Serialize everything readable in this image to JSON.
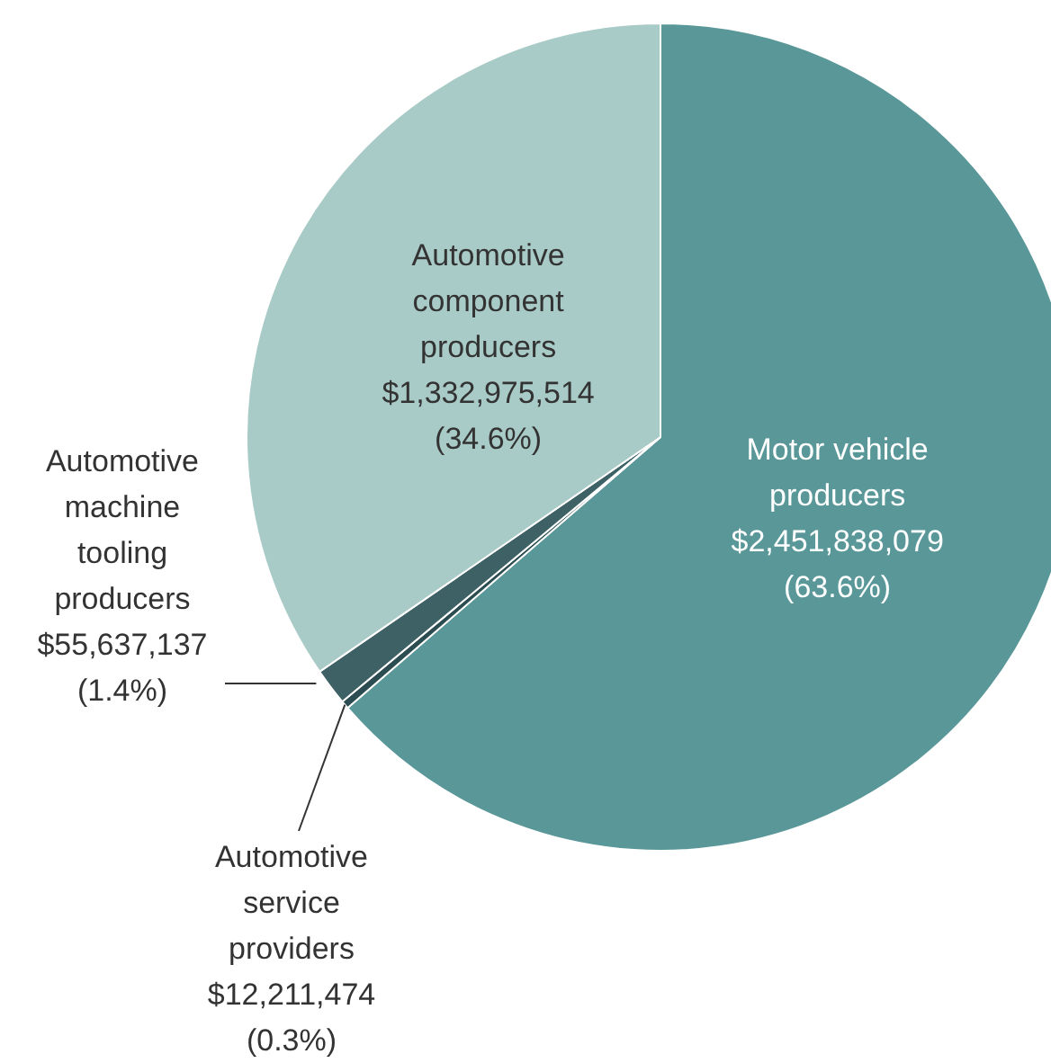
{
  "chart_data": {
    "type": "pie",
    "categories": [
      "Motor vehicle producers",
      "Automotive service providers",
      "Automotive machine tooling producers",
      "Automotive component producers"
    ],
    "values": [
      2451838079,
      12211474,
      55637137,
      1332975514
    ],
    "value_labels": [
      "$2,451,838,079\n(63.6%)",
      "$12,211,474\n(0.3%)",
      "$55,637,137\n(1.4%)",
      "$1,332,975,514\n(34.6%)"
    ],
    "colors": [
      "#5a9799",
      "#2b4d51",
      "#3e6166",
      "#a9cbc7"
    ]
  }
}
